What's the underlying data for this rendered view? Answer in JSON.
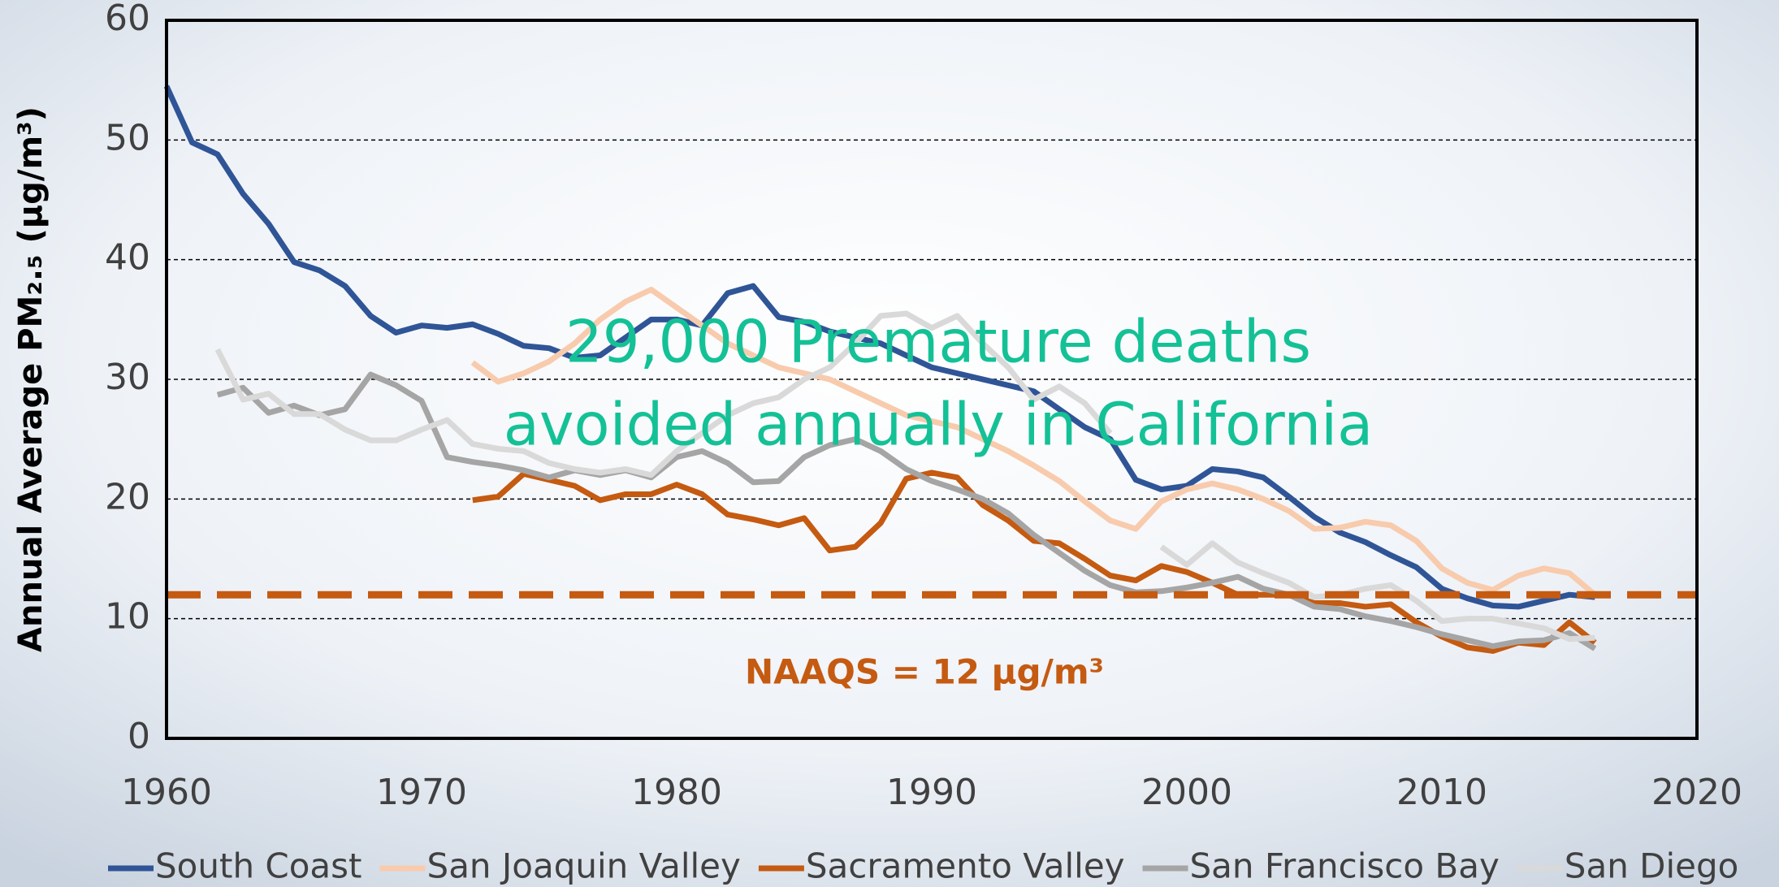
{
  "chart_data": {
    "type": "line",
    "y_label": "Annual Average PM₂.₅ (µg/m³)",
    "annotations": [
      "29,000 Premature deaths",
      "avoided annually in California"
    ],
    "reference_line": {
      "value": 12,
      "label": "NAAQS = 12 µg/m³",
      "color": "#c55a11"
    },
    "x": [
      1960,
      1961,
      1962,
      1963,
      1964,
      1965,
      1966,
      1967,
      1968,
      1969,
      1970,
      1971,
      1972,
      1973,
      1974,
      1975,
      1976,
      1977,
      1978,
      1979,
      1980,
      1981,
      1982,
      1983,
      1984,
      1985,
      1986,
      1987,
      1988,
      1989,
      1990,
      1991,
      1992,
      1993,
      1994,
      1995,
      1996,
      1997,
      1998,
      1999,
      2000,
      2001,
      2002,
      2003,
      2004,
      2005,
      2006,
      2007,
      2008,
      2009,
      2010,
      2011,
      2012,
      2013,
      2014,
      2015,
      2016
    ],
    "series": [
      {
        "name": "South Coast",
        "color": "#2f5597",
        "values": [
          54.5,
          49.8,
          48.8,
          45.5,
          43,
          39.8,
          39.1,
          37.8,
          35.3,
          33.9,
          34.5,
          34.3,
          34.6,
          33.8,
          32.8,
          32.6,
          31.8,
          32,
          33.5,
          35,
          35,
          34.5,
          37.2,
          37.8,
          35.2,
          34.8,
          34,
          33.5,
          33,
          32,
          31,
          30.5,
          30,
          29.5,
          29,
          27.5,
          26,
          25,
          21.6,
          20.8,
          21.1,
          22.5,
          22.3,
          21.8,
          20.2,
          18.5,
          17.2,
          16.4,
          15.3,
          14.3,
          12.5,
          11.7,
          11.1,
          11,
          11.5,
          12,
          11.8
        ]
      },
      {
        "name": "San Joaquin Valley",
        "color": "#f8cbad",
        "values": [
          null,
          null,
          null,
          null,
          null,
          null,
          null,
          null,
          null,
          null,
          null,
          null,
          31.4,
          29.8,
          30.5,
          31.5,
          33,
          35,
          36.5,
          37.5,
          36,
          34.5,
          33,
          32,
          31,
          30.5,
          30,
          29,
          28,
          27,
          26.5,
          26,
          25,
          24,
          22.8,
          21.5,
          19.8,
          18.2,
          17.5,
          19.8,
          20.8,
          21.3,
          20.8,
          20,
          19,
          17.5,
          17.6,
          18.1,
          17.8,
          16.5,
          14.2,
          13,
          12.4,
          13.6,
          14.2,
          13.8,
          12
        ]
      },
      {
        "name": "Sacramento Valley",
        "color": "#c55a11",
        "values": [
          null,
          null,
          null,
          null,
          null,
          null,
          null,
          null,
          null,
          null,
          null,
          null,
          19.9,
          20.2,
          22.1,
          21.6,
          21.1,
          19.9,
          20.4,
          20.4,
          21.2,
          20.4,
          18.7,
          18.3,
          17.8,
          18.4,
          15.7,
          16,
          18,
          21.7,
          22.2,
          21.8,
          19.5,
          18.2,
          16.5,
          16.3,
          15,
          13.6,
          13.2,
          14.4,
          13.9,
          13,
          12,
          12,
          12,
          11.3,
          11.3,
          11,
          11.2,
          9.7,
          8.5,
          7.6,
          7.3,
          8,
          7.8,
          9.7,
          8
        ]
      },
      {
        "name": "San Francisco Bay",
        "color": "#a5a5a5",
        "values": [
          null,
          null,
          28.7,
          29.3,
          27.2,
          27.8,
          27,
          27.5,
          30.4,
          29.5,
          28.2,
          23.5,
          23.1,
          22.8,
          22.4,
          21.8,
          22.4,
          22,
          22.4,
          21.8,
          23.5,
          24,
          23,
          21.4,
          21.5,
          23.5,
          24.5,
          25,
          24,
          22.5,
          21.5,
          20.8,
          20,
          18.8,
          17,
          15.5,
          14,
          12.8,
          12.2,
          12.3,
          12.6,
          13,
          13.5,
          12.5,
          12,
          11,
          10.8,
          10.2,
          9.8,
          9.3,
          8.7,
          8.2,
          7.7,
          8.1,
          8.2,
          8.8,
          7.5
        ]
      },
      {
        "name": "San Diego",
        "color": "#d9d9d9",
        "values": [
          null,
          null,
          32.5,
          28.3,
          28.8,
          27.1,
          27.1,
          25.8,
          24.9,
          24.9,
          25.8,
          26.6,
          24.6,
          24.2,
          24,
          23,
          22.5,
          22.2,
          22.5,
          22,
          24,
          25.5,
          27,
          28,
          28.5,
          30,
          31,
          33,
          35.3,
          35.5,
          34.3,
          35.3,
          33,
          31,
          28.3,
          29.4,
          28,
          25.5,
          null,
          16,
          14.5,
          16.3,
          14.7,
          13.8,
          13,
          11.8,
          12,
          12.5,
          12.8,
          11.5,
          9.8,
          10,
          10,
          9.6,
          9.2,
          8.3,
          8.4
        ]
      }
    ],
    "xlim": [
      1960,
      2020
    ],
    "xticks": [
      1960,
      1970,
      1980,
      1990,
      2000,
      2010,
      2020
    ],
    "ylim": [
      0,
      60
    ],
    "yticks": [
      0,
      10,
      20,
      30,
      40,
      50,
      60
    ],
    "grid": true,
    "legend": "bottom"
  }
}
